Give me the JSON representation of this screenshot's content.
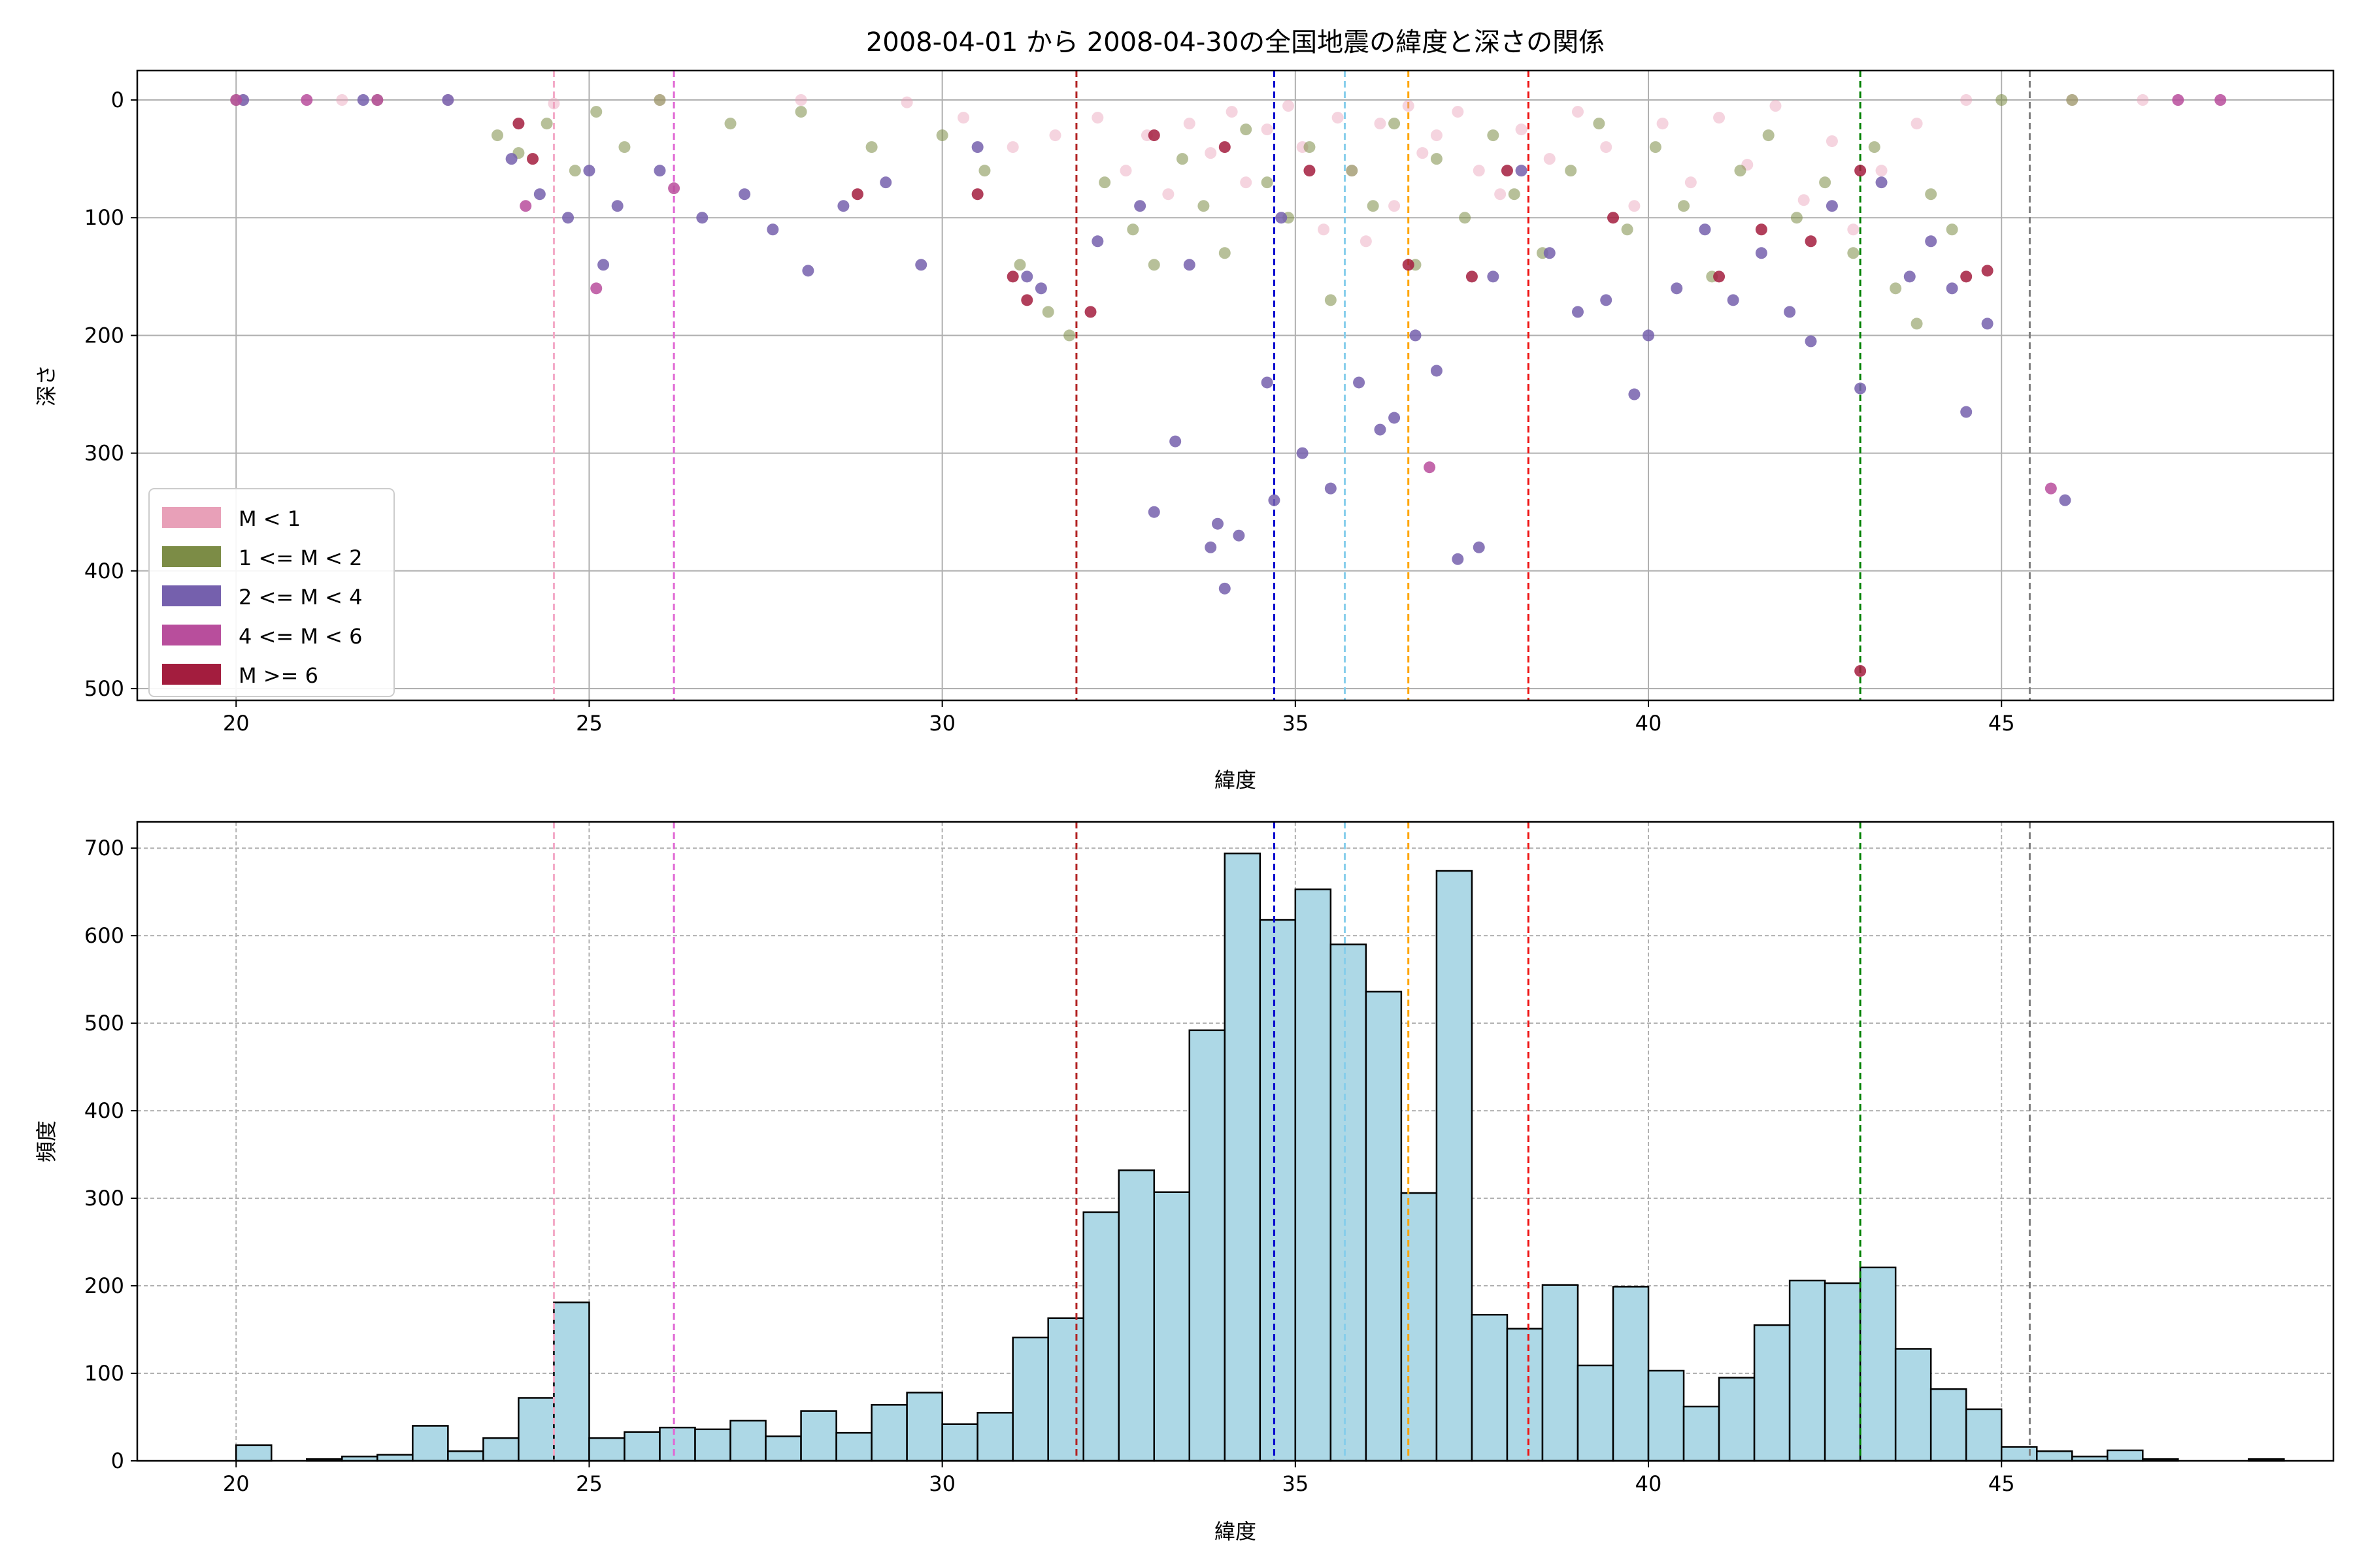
{
  "figure": {
    "title": "2008-04-01 から 2008-04-30の全国地震の緯度と深さの関係"
  },
  "chart_data": [
    {
      "type": "scatter",
      "title": "2008-04-01 から 2008-04-30の全国地震の緯度と深さの関係",
      "xlabel": "緯度",
      "ylabel": "深さ",
      "xlim": [
        18.6,
        49.7
      ],
      "ylim": [
        510,
        -25
      ],
      "y_inverted": true,
      "xticks": [
        20,
        25,
        30,
        35,
        40,
        45
      ],
      "yticks": [
        0,
        100,
        200,
        300,
        400,
        500
      ],
      "grid": true,
      "legend_position": "lower-left",
      "legend": [
        {
          "label": "M < 1",
          "color": "#e8a0b8"
        },
        {
          "label": "1 <= M < 2",
          "color": "#7c8c46"
        },
        {
          "label": "2 <= M < 4",
          "color": "#7560ad"
        },
        {
          "label": "4 <= M < 6",
          "color": "#b84e9c"
        },
        {
          "label": "M >= 6",
          "color": "#a31d3e"
        }
      ],
      "reference_lines": [
        {
          "x": 24.5,
          "color": "#f4a9c6"
        },
        {
          "x": 26.2,
          "color": "#e066d4"
        },
        {
          "x": 31.9,
          "color": "#b22222"
        },
        {
          "x": 34.7,
          "color": "#0000cd"
        },
        {
          "x": 35.7,
          "color": "#87ceeb"
        },
        {
          "x": 36.6,
          "color": "#ffa500"
        },
        {
          "x": 38.3,
          "color": "#ee1111"
        },
        {
          "x": 43.0,
          "color": "#008000"
        },
        {
          "x": 45.4,
          "color": "#808080"
        }
      ],
      "series": [
        {
          "name": "M < 1",
          "color": "#e8a0b8",
          "points": [
            [
              20.1,
              0
            ],
            [
              21.5,
              0
            ],
            [
              23.0,
              0
            ],
            [
              24.5,
              3
            ],
            [
              26.0,
              0
            ],
            [
              28.0,
              0
            ],
            [
              29.5,
              2
            ],
            [
              30.3,
              15
            ],
            [
              31.0,
              40
            ],
            [
              31.6,
              30
            ],
            [
              32.2,
              15
            ],
            [
              32.6,
              60
            ],
            [
              32.9,
              30
            ],
            [
              33.2,
              80
            ],
            [
              33.5,
              20
            ],
            [
              33.8,
              45
            ],
            [
              34.1,
              10
            ],
            [
              34.3,
              70
            ],
            [
              34.6,
              25
            ],
            [
              34.9,
              5
            ],
            [
              35.1,
              40
            ],
            [
              35.4,
              110
            ],
            [
              35.6,
              15
            ],
            [
              35.8,
              60
            ],
            [
              36.0,
              120
            ],
            [
              36.2,
              20
            ],
            [
              36.4,
              90
            ],
            [
              36.6,
              5
            ],
            [
              36.8,
              45
            ],
            [
              37.0,
              30
            ],
            [
              37.3,
              10
            ],
            [
              37.6,
              60
            ],
            [
              37.9,
              80
            ],
            [
              38.2,
              25
            ],
            [
              38.6,
              50
            ],
            [
              39.0,
              10
            ],
            [
              39.4,
              40
            ],
            [
              39.8,
              90
            ],
            [
              40.2,
              20
            ],
            [
              40.6,
              70
            ],
            [
              41.0,
              15
            ],
            [
              41.4,
              55
            ],
            [
              41.8,
              5
            ],
            [
              42.2,
              85
            ],
            [
              42.6,
              35
            ],
            [
              42.9,
              110
            ],
            [
              43.3,
              60
            ],
            [
              43.8,
              20
            ],
            [
              44.5,
              0
            ],
            [
              46.0,
              0
            ],
            [
              47.0,
              0
            ]
          ]
        },
        {
          "name": "1 <= M < 2",
          "color": "#7c8c46",
          "points": [
            [
              20.0,
              0
            ],
            [
              22.0,
              0
            ],
            [
              23.7,
              30
            ],
            [
              24.0,
              45
            ],
            [
              24.4,
              20
            ],
            [
              24.8,
              60
            ],
            [
              25.1,
              10
            ],
            [
              25.5,
              40
            ],
            [
              26.0,
              0
            ],
            [
              27.0,
              20
            ],
            [
              28.0,
              10
            ],
            [
              29.0,
              40
            ],
            [
              30.0,
              30
            ],
            [
              30.6,
              60
            ],
            [
              31.1,
              140
            ],
            [
              31.5,
              180
            ],
            [
              31.8,
              200
            ],
            [
              32.3,
              70
            ],
            [
              32.7,
              110
            ],
            [
              33.0,
              140
            ],
            [
              33.4,
              50
            ],
            [
              33.7,
              90
            ],
            [
              34.0,
              130
            ],
            [
              34.3,
              25
            ],
            [
              34.6,
              70
            ],
            [
              34.9,
              100
            ],
            [
              35.2,
              40
            ],
            [
              35.5,
              170
            ],
            [
              35.8,
              60
            ],
            [
              36.1,
              90
            ],
            [
              36.4,
              20
            ],
            [
              36.7,
              140
            ],
            [
              37.0,
              50
            ],
            [
              37.4,
              100
            ],
            [
              37.8,
              30
            ],
            [
              38.1,
              80
            ],
            [
              38.5,
              130
            ],
            [
              38.9,
              60
            ],
            [
              39.3,
              20
            ],
            [
              39.7,
              110
            ],
            [
              40.1,
              40
            ],
            [
              40.5,
              90
            ],
            [
              40.9,
              150
            ],
            [
              41.3,
              60
            ],
            [
              41.7,
              30
            ],
            [
              42.1,
              100
            ],
            [
              42.5,
              70
            ],
            [
              42.9,
              130
            ],
            [
              43.2,
              40
            ],
            [
              43.5,
              160
            ],
            [
              43.8,
              190
            ],
            [
              44.0,
              80
            ],
            [
              44.3,
              110
            ],
            [
              45.0,
              0
            ],
            [
              46.0,
              0
            ]
          ]
        },
        {
          "name": "2 <= M < 4",
          "color": "#7560ad",
          "points": [
            [
              20.1,
              0
            ],
            [
              21.8,
              0
            ],
            [
              23.0,
              0
            ],
            [
              23.9,
              50
            ],
            [
              24.3,
              80
            ],
            [
              24.7,
              100
            ],
            [
              25.0,
              60
            ],
            [
              25.2,
              140
            ],
            [
              25.4,
              90
            ],
            [
              26.0,
              60
            ],
            [
              26.6,
              100
            ],
            [
              27.2,
              80
            ],
            [
              27.6,
              110
            ],
            [
              28.1,
              145
            ],
            [
              28.6,
              90
            ],
            [
              29.2,
              70
            ],
            [
              29.7,
              140
            ],
            [
              30.5,
              40
            ],
            [
              31.2,
              150
            ],
            [
              31.4,
              160
            ],
            [
              32.2,
              120
            ],
            [
              32.8,
              90
            ],
            [
              33.0,
              350
            ],
            [
              33.3,
              290
            ],
            [
              33.5,
              140
            ],
            [
              33.8,
              380
            ],
            [
              33.9,
              360
            ],
            [
              34.0,
              415
            ],
            [
              34.2,
              370
            ],
            [
              34.6,
              240
            ],
            [
              34.7,
              340
            ],
            [
              34.8,
              100
            ],
            [
              35.1,
              300
            ],
            [
              35.5,
              330
            ],
            [
              35.9,
              240
            ],
            [
              36.2,
              280
            ],
            [
              36.4,
              270
            ],
            [
              36.7,
              200
            ],
            [
              37.0,
              230
            ],
            [
              37.3,
              390
            ],
            [
              37.6,
              380
            ],
            [
              37.8,
              150
            ],
            [
              38.2,
              60
            ],
            [
              38.6,
              130
            ],
            [
              39.0,
              180
            ],
            [
              39.4,
              170
            ],
            [
              39.8,
              250
            ],
            [
              40.0,
              200
            ],
            [
              40.4,
              160
            ],
            [
              40.8,
              110
            ],
            [
              41.2,
              170
            ],
            [
              41.6,
              130
            ],
            [
              42.0,
              180
            ],
            [
              42.3,
              205
            ],
            [
              42.6,
              90
            ],
            [
              43.0,
              245
            ],
            [
              43.3,
              70
            ],
            [
              43.7,
              150
            ],
            [
              44.0,
              120
            ],
            [
              44.3,
              160
            ],
            [
              44.5,
              265
            ],
            [
              44.8,
              190
            ],
            [
              45.9,
              340
            ]
          ]
        },
        {
          "name": "4 <= M < 6",
          "color": "#b84e9c",
          "points": [
            [
              20.0,
              0
            ],
            [
              21.0,
              0
            ],
            [
              22.0,
              0
            ],
            [
              24.1,
              90
            ],
            [
              25.1,
              160
            ],
            [
              26.2,
              75
            ],
            [
              36.9,
              312
            ],
            [
              45.7,
              330
            ],
            [
              47.5,
              0
            ],
            [
              48.1,
              0
            ]
          ]
        },
        {
          "name": "M >= 6",
          "color": "#a31d3e",
          "points": [
            [
              24.0,
              20
            ],
            [
              24.2,
              50
            ],
            [
              28.8,
              80
            ],
            [
              30.5,
              80
            ],
            [
              31.0,
              150
            ],
            [
              31.2,
              170
            ],
            [
              32.1,
              180
            ],
            [
              33.0,
              30
            ],
            [
              34.0,
              40
            ],
            [
              35.2,
              60
            ],
            [
              36.6,
              140
            ],
            [
              37.5,
              150
            ],
            [
              38.0,
              60
            ],
            [
              39.5,
              100
            ],
            [
              41.0,
              150
            ],
            [
              41.6,
              110
            ],
            [
              42.3,
              120
            ],
            [
              43.0,
              60
            ],
            [
              44.5,
              150
            ],
            [
              44.8,
              145
            ],
            [
              43.0,
              485
            ]
          ]
        }
      ]
    },
    {
      "type": "bar",
      "xlabel": "緯度",
      "ylabel": "頻度",
      "xlim": [
        18.6,
        49.7
      ],
      "ylim": [
        0,
        730
      ],
      "xticks": [
        20,
        25,
        30,
        35,
        40,
        45
      ],
      "yticks": [
        0,
        100,
        200,
        300,
        400,
        500,
        600,
        700
      ],
      "grid": true,
      "bar_color": "#add8e6",
      "bin_start": 20.0,
      "bin_width": 0.5,
      "values": [
        18,
        0,
        2,
        5,
        7,
        40,
        11,
        26,
        72,
        181,
        26,
        33,
        38,
        36,
        46,
        28,
        57,
        32,
        64,
        78,
        42,
        55,
        141,
        163,
        284,
        332,
        307,
        492,
        694,
        618,
        653,
        590,
        536,
        306,
        674,
        167,
        151,
        201,
        109,
        199,
        103,
        62,
        95,
        155,
        206,
        203,
        221,
        128,
        82,
        59,
        16,
        11,
        5,
        12,
        2,
        0,
        0,
        2,
        0,
        0
      ],
      "reference_lines": [
        {
          "x": 24.5,
          "color": "#f4a9c6"
        },
        {
          "x": 26.2,
          "color": "#e066d4"
        },
        {
          "x": 31.9,
          "color": "#b22222"
        },
        {
          "x": 34.7,
          "color": "#0000cd"
        },
        {
          "x": 35.7,
          "color": "#87ceeb"
        },
        {
          "x": 36.6,
          "color": "#ffa500"
        },
        {
          "x": 38.3,
          "color": "#ee1111"
        },
        {
          "x": 43.0,
          "color": "#008000"
        },
        {
          "x": 45.4,
          "color": "#808080"
        }
      ]
    }
  ]
}
